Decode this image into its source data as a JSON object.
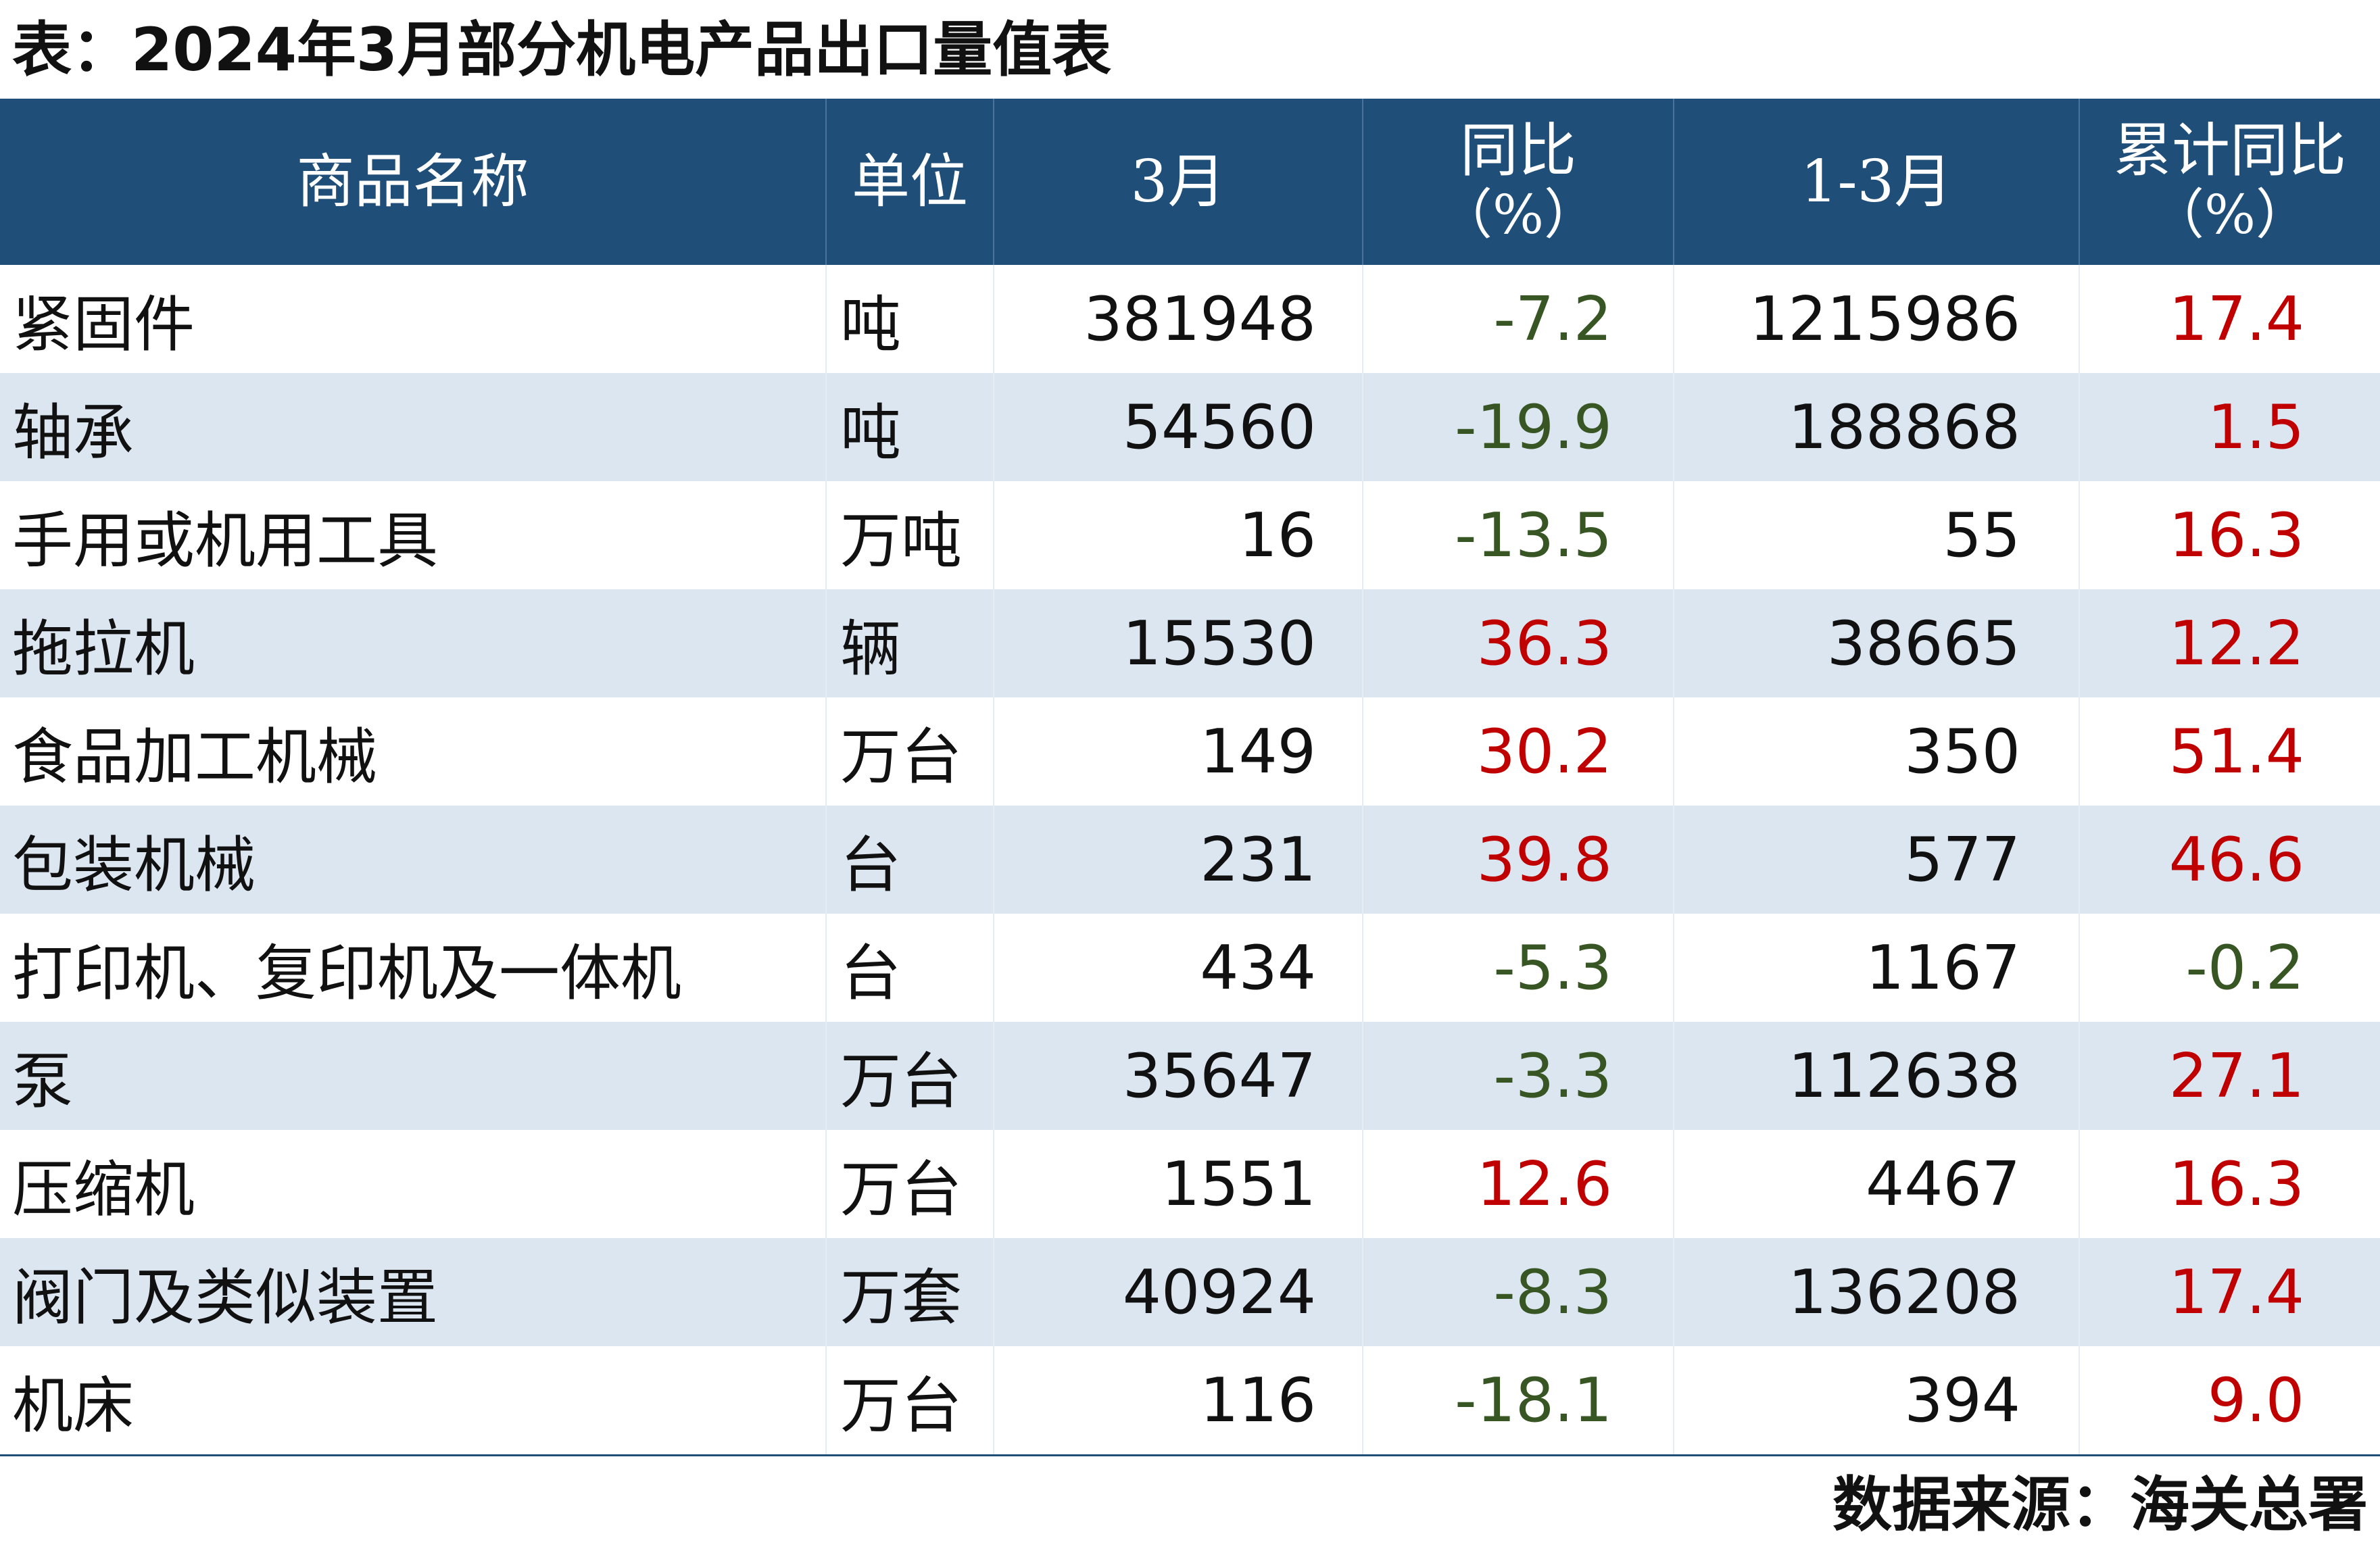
{
  "title": "表：2024年3月部分机电产品出口量值表",
  "colors": {
    "header_bg": "#1f4e79",
    "header_text": "#ffffff",
    "stripe_bg": "#dce6f1",
    "negative_text": "#375623",
    "positive_text": "#c00000"
  },
  "table": {
    "headers": {
      "name": "商品名称",
      "unit": "单位",
      "month": "3月",
      "yoy_line1": "同比",
      "yoy_line2": "（%）",
      "cum": "1-3月",
      "cum_yoy_line1": "累计同比",
      "cum_yoy_line2": "（%）"
    },
    "rows": [
      {
        "name": "紧固件",
        "unit": "吨",
        "month": "381948",
        "yoy": "-7.2",
        "cum": "1215986",
        "cum_yoy": "17.4"
      },
      {
        "name": "轴承",
        "unit": "吨",
        "month": "54560",
        "yoy": "-19.9",
        "cum": "188868",
        "cum_yoy": "1.5"
      },
      {
        "name": "手用或机用工具",
        "unit": "万吨",
        "month": "16",
        "yoy": "-13.5",
        "cum": "55",
        "cum_yoy": "16.3"
      },
      {
        "name": "拖拉机",
        "unit": "辆",
        "month": "15530",
        "yoy": "36.3",
        "cum": "38665",
        "cum_yoy": "12.2"
      },
      {
        "name": "食品加工机械",
        "unit": "万台",
        "month": "149",
        "yoy": "30.2",
        "cum": "350",
        "cum_yoy": "51.4"
      },
      {
        "name": "包装机械",
        "unit": "台",
        "month": "231",
        "yoy": "39.8",
        "cum": "577",
        "cum_yoy": "46.6"
      },
      {
        "name": "打印机、复印机及一体机",
        "unit": "台",
        "month": "434",
        "yoy": "-5.3",
        "cum": "1167",
        "cum_yoy": "-0.2"
      },
      {
        "name": "泵",
        "unit": "万台",
        "month": "35647",
        "yoy": "-3.3",
        "cum": "112638",
        "cum_yoy": "27.1"
      },
      {
        "name": "压缩机",
        "unit": "万台",
        "month": "1551",
        "yoy": "12.6",
        "cum": "4467",
        "cum_yoy": "16.3"
      },
      {
        "name": "阀门及类似装置",
        "unit": "万套",
        "month": "40924",
        "yoy": "-8.3",
        "cum": "136208",
        "cum_yoy": "17.4"
      },
      {
        "name": "机床",
        "unit": "万台",
        "month": "116",
        "yoy": "-18.1",
        "cum": "394",
        "cum_yoy": "9.0"
      }
    ]
  },
  "source": "数据来源：海关总署"
}
